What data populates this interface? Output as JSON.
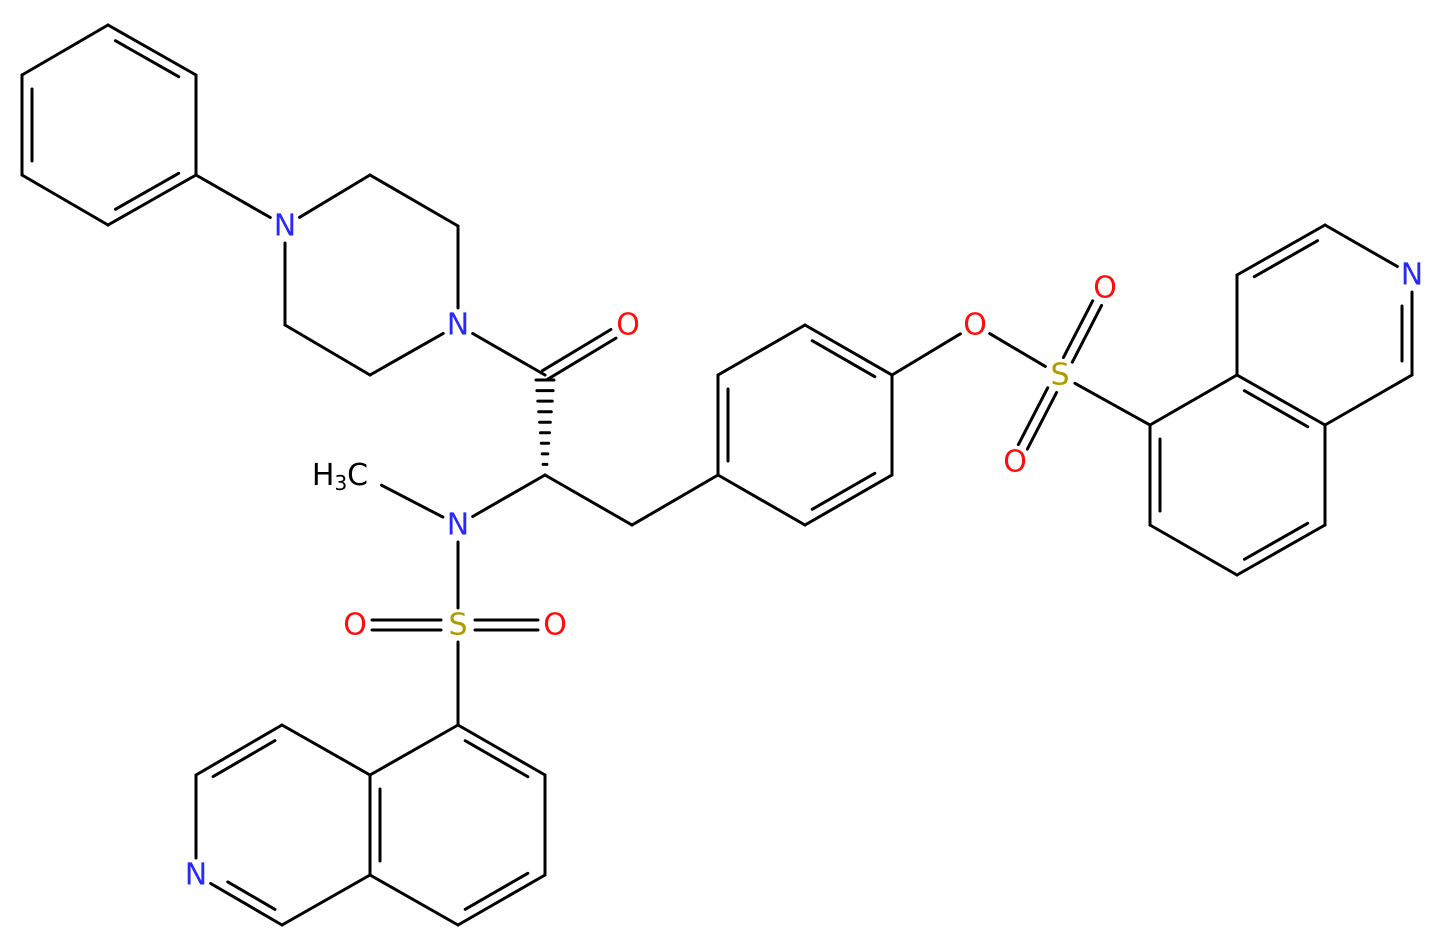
{
  "atom_labels": [
    "N",
    "N",
    "O",
    "N",
    "S",
    "O",
    "O",
    "N",
    "O",
    "S",
    "O",
    "O",
    "N"
  ],
  "methyl": [
    "H",
    "3",
    "C"
  ]
}
